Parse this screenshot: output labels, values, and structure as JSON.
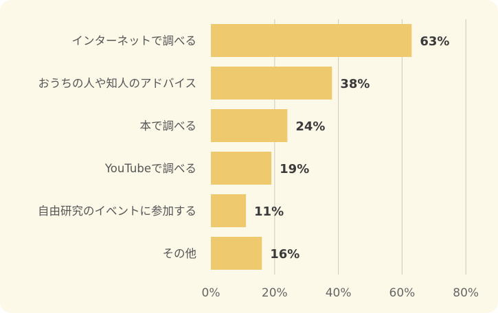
{
  "chart_data": {
    "type": "bar",
    "orientation": "horizontal",
    "categories": [
      "インターネットで調べる",
      "おうちの人や知人のアドバイス",
      "本で調べる",
      "YouTubeで調べる",
      "自由研究のイベントに参加する",
      "その他"
    ],
    "values": [
      63,
      38,
      24,
      19,
      11,
      16
    ],
    "value_labels": [
      "63%",
      "38%",
      "24%",
      "19%",
      "11%",
      "16%"
    ],
    "xlim": [
      0,
      80
    ],
    "x_ticks": [
      0,
      20,
      40,
      60,
      80
    ],
    "x_tick_labels": [
      "0%",
      "20%",
      "40%",
      "60%",
      "80%"
    ],
    "grid": true,
    "title": "",
    "xlabel": "",
    "ylabel": ""
  },
  "colors": {
    "bar": "#eec96e",
    "background": "#fcf9e9",
    "grid": "#d4d0c4"
  }
}
